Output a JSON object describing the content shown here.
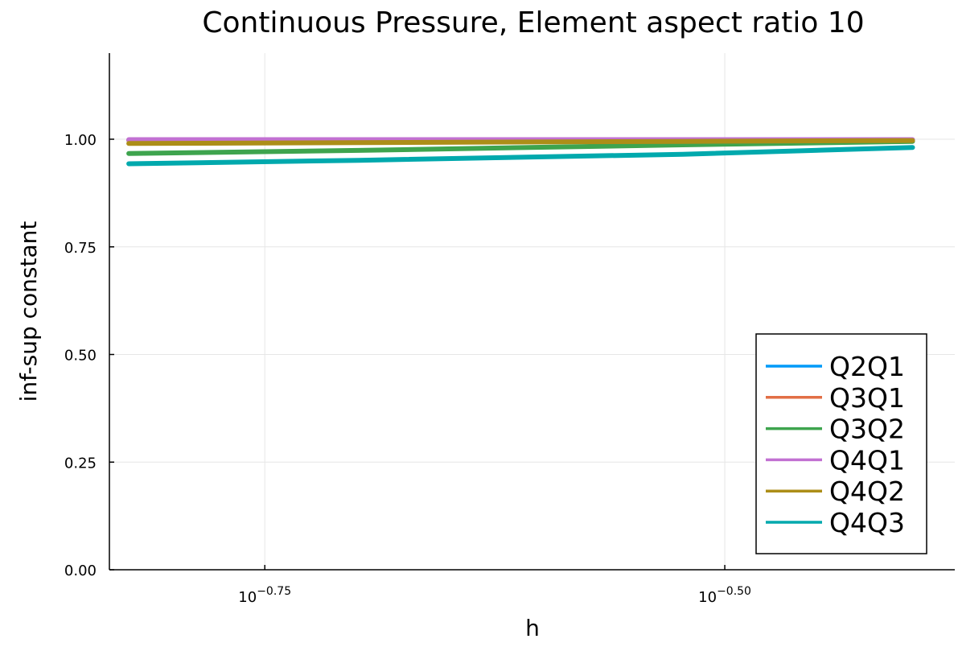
{
  "chart_data": {
    "type": "line",
    "title": "Continuous Pressure, Element aspect ratio 10",
    "xlabel": "h",
    "ylabel": "inf-sup constant",
    "x_scale": "log10",
    "xlim": [
      0.1464,
      0.4217
    ],
    "ylim": [
      0,
      1.2
    ],
    "grid": true,
    "legend_position": "bottom-right",
    "x_ticks": [
      {
        "value": 0.17783,
        "base": "10",
        "exponent": "−0.75"
      },
      {
        "value": 0.31623,
        "base": "10",
        "exponent": "−0.50"
      }
    ],
    "y_ticks": [
      {
        "value": 0,
        "label": "0.00"
      },
      {
        "value": 0.25,
        "label": "0.25"
      },
      {
        "value": 0.5,
        "label": "0.50"
      },
      {
        "value": 0.75,
        "label": "0.75"
      },
      {
        "value": 1.0,
        "label": "1.00"
      }
    ],
    "x": [
      0.15,
      0.2,
      0.3,
      0.4
    ],
    "series": [
      {
        "name": "Q2Q1",
        "color": "#009af9",
        "values": [
          0.998,
          0.998,
          0.998,
          0.998
        ]
      },
      {
        "name": "Q3Q1",
        "color": "#e26f46",
        "values": [
          0.998,
          0.998,
          0.998,
          0.998
        ]
      },
      {
        "name": "Q3Q2",
        "color": "#3ea44e",
        "values": [
          0.967,
          0.974,
          0.987,
          0.995
        ]
      },
      {
        "name": "Q4Q1",
        "color": "#c271d2",
        "values": [
          0.999,
          0.999,
          0.999,
          0.999
        ]
      },
      {
        "name": "Q4Q2",
        "color": "#ac8e18",
        "values": [
          0.99,
          0.992,
          0.995,
          0.997
        ]
      },
      {
        "name": "Q4Q3",
        "color": "#00a9ad",
        "values": [
          0.943,
          0.951,
          0.965,
          0.981
        ]
      }
    ]
  }
}
